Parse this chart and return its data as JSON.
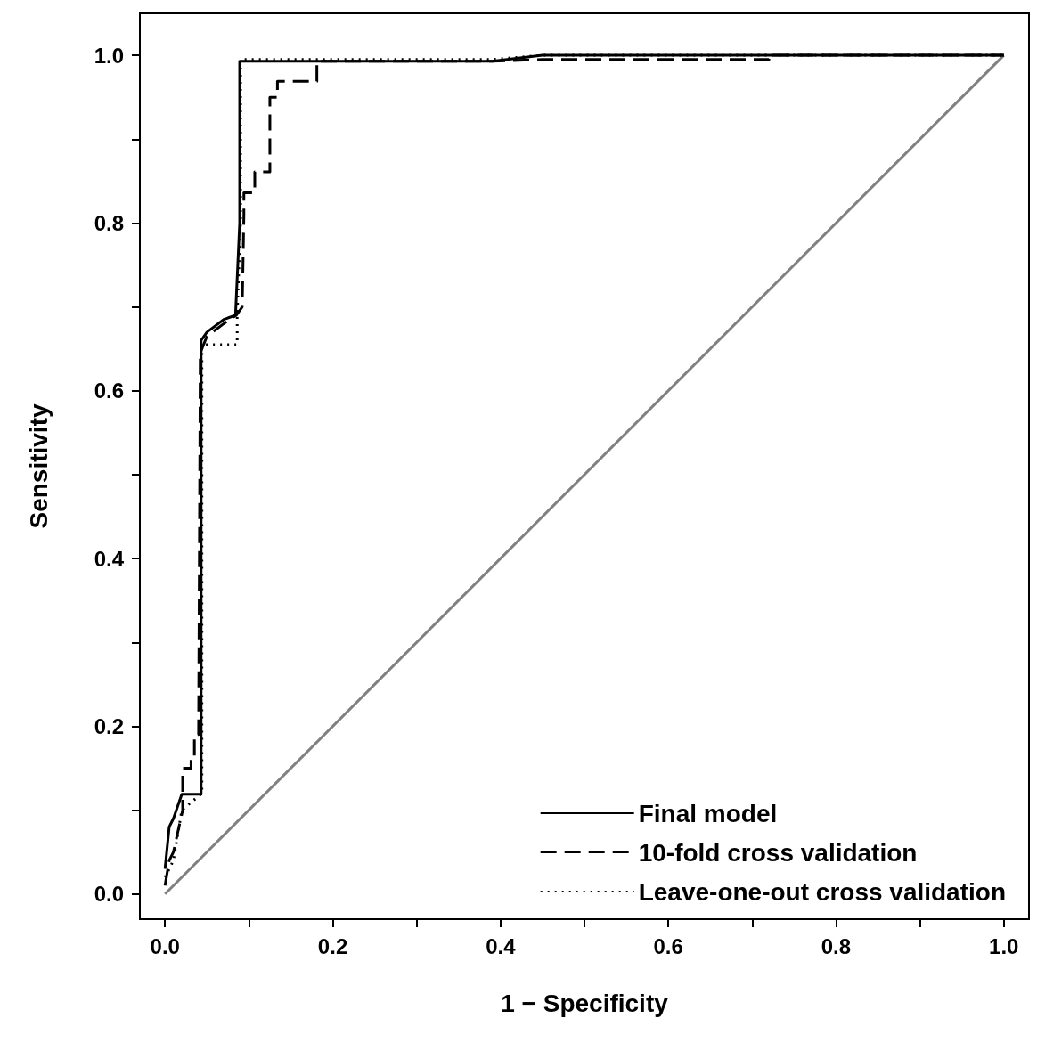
{
  "chart_data": {
    "type": "line",
    "xlabel": "1 − Specificity",
    "ylabel": "Sensitivity",
    "xlim": [
      -0.03,
      1.03
    ],
    "ylim": [
      -0.03,
      1.05
    ],
    "xticks": [
      {
        "value": 0,
        "label": "0.0"
      },
      {
        "value": 0.1,
        "label": null
      },
      0.2,
      {
        "value": 0.3,
        "label": null
      },
      0.4,
      {
        "value": 0.5,
        "label": null
      },
      0.6,
      {
        "value": 0.7,
        "label": null
      },
      0.8,
      {
        "value": 0.9,
        "label": null
      },
      {
        "value": 1,
        "label": "1.0"
      }
    ],
    "yticks": [
      {
        "value": 0,
        "label": "0.0"
      },
      {
        "value": 0.1,
        "label": null
      },
      0.2,
      {
        "value": 0.3,
        "label": null
      },
      0.4,
      {
        "value": 0.5,
        "label": null
      },
      0.6,
      {
        "value": 0.7,
        "label": null
      },
      0.8,
      {
        "value": 0.9,
        "label": null
      },
      {
        "value": 1,
        "label": "1.0"
      }
    ],
    "grid": false,
    "legend": "bottom right",
    "marker": "none",
    "series": [
      {
        "name": null,
        "color": "#808080",
        "line_style": "solid",
        "x": [
          0,
          1
        ],
        "values": [
          0,
          1
        ]
      },
      {
        "name": "Leave-one-out cross validation",
        "color": "#000000",
        "line_style": "dotted",
        "x": [
          0,
          0.01,
          0.015,
          0.02,
          0.044,
          0.044,
          0.086,
          0.086,
          0.09,
          0.09,
          0.39,
          0.45,
          1
        ],
        "values": [
          0.02,
          0.04,
          0.07,
          0.1,
          0.12,
          0.655,
          0.655,
          0.69,
          0.8,
          0.995,
          0.995,
          1,
          1
        ]
      },
      {
        "name": "10-fold cross validation",
        "color": "#000000",
        "line_style": "dashed",
        "x": [
          0,
          0.005,
          0.01,
          0.021,
          0.021,
          0.031,
          0.031,
          0.035,
          0.035,
          0.04,
          0.042,
          0.05,
          0.07,
          0.085,
          0.092,
          0.094,
          0.094,
          0.107,
          0.107,
          0.125,
          0.125,
          0.134,
          0.134,
          0.181,
          0.181,
          0.39,
          0.45,
          0.72,
          0.72,
          1
        ],
        "values": [
          0.01,
          0.04,
          0.05,
          0.1,
          0.15,
          0.15,
          0.165,
          0.165,
          0.19,
          0.19,
          0.645,
          0.665,
          0.68,
          0.69,
          0.7,
          0.81,
          0.836,
          0.836,
          0.861,
          0.861,
          0.95,
          0.95,
          0.969,
          0.969,
          0.993,
          0.993,
          0.995,
          0.995,
          1,
          1
        ]
      },
      {
        "name": "Final model",
        "color": "#000000",
        "line_style": "solid",
        "x": [
          0,
          0.005,
          0.01,
          0.02,
          0.043,
          0.043,
          0.05,
          0.07,
          0.084,
          0.089,
          0.089,
          0.39,
          0.45,
          1
        ],
        "values": [
          0.03,
          0.08,
          0.09,
          0.119,
          0.119,
          0.66,
          0.67,
          0.685,
          0.69,
          0.8,
          0.993,
          0.993,
          1,
          1
        ]
      }
    ]
  }
}
